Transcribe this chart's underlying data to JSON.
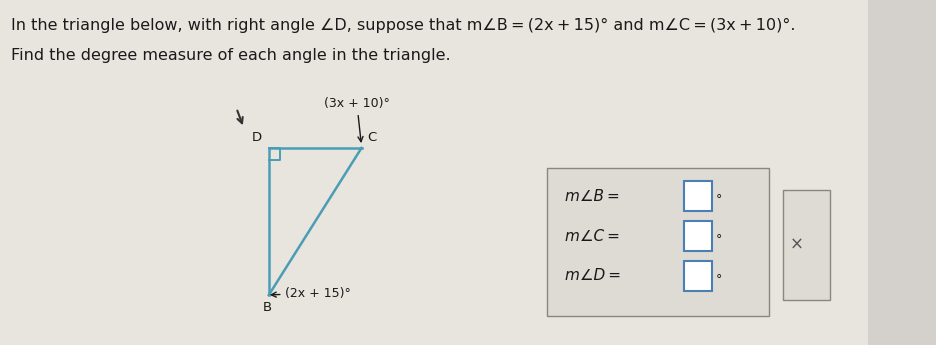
{
  "title_line1": "In the triangle below, with right angle ∠D, suppose that m∠B = (2x + 15)° and m∠C = (3x + 10)°.",
  "title_line2": "Find the degree measure of each angle in the triangle.",
  "label_B": "B",
  "label_D": "D",
  "label_C": "C",
  "angle_B_label": "(2x + 15)°",
  "angle_C_label": "(3x + 10)°",
  "triangle_color": "#4a9db5",
  "box_label_B": "m∠B =",
  "box_label_C": "m∠C =",
  "box_label_D": "m∠D =",
  "bg_color": "#d4d0cb",
  "page_color": "#e8e4de",
  "text_color": "#1a1a1a",
  "input_box_color": "#4a7fb5",
  "font_size_title": 11.5,
  "font_size_labels": 9.5,
  "font_size_angle": 9.0,
  "font_size_box": 11.0
}
